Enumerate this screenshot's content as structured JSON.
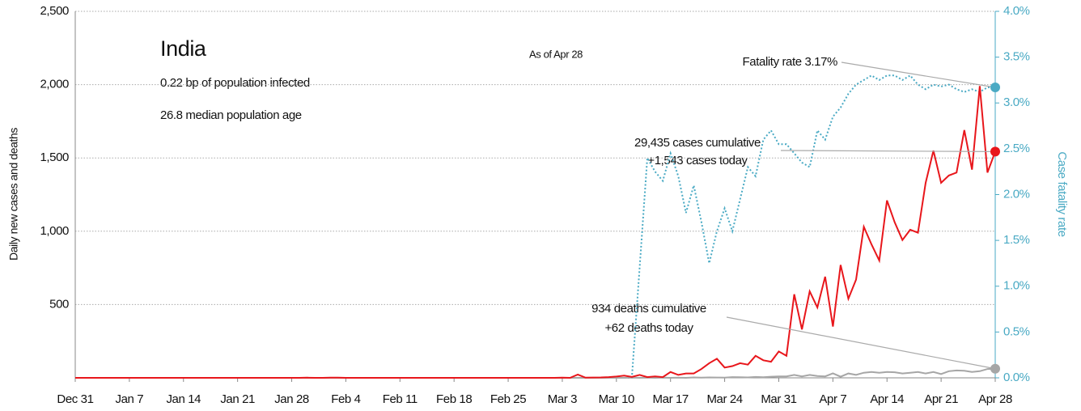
{
  "chart_data": {
    "type": "line",
    "title": "India",
    "subtitle": "As of Apr 28",
    "annotations": {
      "population_infected": "0.22 bp of population infected",
      "median_age": "26.8 median population age",
      "fatality": "Fatality rate 3.17%",
      "cases_cumulative": "29,435 cases cumulative",
      "cases_today": "+1,543 cases today",
      "deaths_cumulative": "934 deaths cumulative",
      "deaths_today": "+62 deaths today"
    },
    "ylabel": "Daily new cases and deaths",
    "y2label": "Case fatality rate",
    "categories": [
      "Dec 31",
      null,
      null,
      null,
      null,
      null,
      null,
      "Jan 7",
      null,
      null,
      null,
      null,
      null,
      null,
      "Jan 14",
      null,
      null,
      null,
      null,
      null,
      null,
      "Jan 21",
      null,
      null,
      null,
      null,
      null,
      null,
      "Jan 28",
      null,
      null,
      null,
      null,
      null,
      null,
      "Feb 4",
      null,
      null,
      null,
      null,
      null,
      null,
      "Feb 11",
      null,
      null,
      null,
      null,
      null,
      null,
      "Feb 18",
      null,
      null,
      null,
      null,
      null,
      null,
      "Feb 25",
      null,
      null,
      null,
      null,
      null,
      null,
      "Mar 3",
      null,
      null,
      null,
      null,
      null,
      null,
      "Mar 10",
      null,
      null,
      null,
      null,
      null,
      null,
      "Mar 17",
      null,
      null,
      null,
      null,
      null,
      null,
      "Mar 24",
      null,
      null,
      null,
      null,
      null,
      null,
      "Mar 31",
      null,
      null,
      null,
      null,
      null,
      null,
      "Apr 7",
      null,
      null,
      null,
      null,
      null,
      null,
      "Apr 14",
      null,
      null,
      null,
      null,
      null,
      null,
      "Apr 21",
      null,
      null,
      null,
      null,
      null,
      null,
      "Apr 28"
    ],
    "series": [
      {
        "color": "#e8161b",
        "style": "solid",
        "axis": "y",
        "values": [
          0,
          0,
          0,
          0,
          0,
          0,
          0,
          0,
          0,
          0,
          0,
          0,
          0,
          0,
          0,
          0,
          0,
          0,
          0,
          0,
          0,
          0,
          0,
          0,
          0,
          0,
          0,
          0,
          0,
          0,
          1,
          0,
          0,
          1,
          1,
          0,
          0,
          0,
          0,
          0,
          0,
          0,
          0,
          0,
          0,
          0,
          0,
          0,
          0,
          0,
          0,
          0,
          0,
          0,
          0,
          0,
          0,
          0,
          0,
          0,
          0,
          0,
          0,
          1,
          0,
          22,
          1,
          2,
          3,
          5,
          9,
          15,
          6,
          20,
          5,
          10,
          5,
          40,
          20,
          30,
          30,
          60,
          100,
          130,
          70,
          80,
          100,
          90,
          150,
          120,
          110,
          180,
          150,
          570,
          330,
          590,
          480,
          690,
          350,
          770,
          540,
          670,
          1030,
          910,
          800,
          1210,
          1060,
          940,
          1010,
          990,
          1330,
          1550,
          1330,
          1380,
          1400,
          1690,
          1420,
          1990,
          1400,
          1543
        ]
      },
      {
        "color": "#a6a6a6",
        "style": "solid",
        "axis": "y",
        "values": [
          0,
          0,
          0,
          0,
          0,
          0,
          0,
          0,
          0,
          0,
          0,
          0,
          0,
          0,
          0,
          0,
          0,
          0,
          0,
          0,
          0,
          0,
          0,
          0,
          0,
          0,
          0,
          0,
          0,
          0,
          0,
          0,
          0,
          0,
          0,
          0,
          0,
          0,
          0,
          0,
          0,
          0,
          0,
          0,
          0,
          0,
          0,
          0,
          0,
          0,
          0,
          0,
          0,
          0,
          0,
          0,
          0,
          0,
          0,
          0,
          0,
          0,
          0,
          0,
          0,
          0,
          0,
          0,
          0,
          0,
          0,
          0,
          1,
          0,
          1,
          0,
          1,
          0,
          1,
          0,
          3,
          1,
          3,
          2,
          1,
          5,
          4,
          3,
          6,
          4,
          8,
          10,
          10,
          20,
          10,
          20,
          12,
          10,
          31,
          8,
          30,
          20,
          35,
          40,
          35,
          40,
          38,
          30,
          35,
          40,
          30,
          40,
          26,
          45,
          50,
          48,
          40,
          45,
          60,
          62
        ]
      },
      {
        "color": "#4aaac4",
        "style": "dotted",
        "axis": "y2",
        "values": [
          null,
          null,
          null,
          null,
          null,
          null,
          null,
          null,
          null,
          null,
          null,
          null,
          null,
          null,
          null,
          null,
          null,
          null,
          null,
          null,
          null,
          null,
          null,
          null,
          null,
          null,
          null,
          null,
          null,
          null,
          null,
          null,
          null,
          null,
          null,
          null,
          null,
          null,
          null,
          null,
          null,
          null,
          null,
          null,
          null,
          null,
          null,
          null,
          null,
          null,
          null,
          null,
          null,
          null,
          null,
          null,
          null,
          null,
          null,
          null,
          null,
          null,
          null,
          null,
          null,
          null,
          null,
          null,
          null,
          null,
          null,
          0,
          0,
          1.2,
          2.4,
          2.25,
          2.15,
          2.45,
          2.2,
          1.8,
          2.1,
          1.7,
          1.25,
          1.6,
          1.85,
          1.6,
          1.95,
          2.3,
          2.2,
          2.6,
          2.7,
          2.55,
          2.55,
          2.45,
          2.35,
          2.3,
          2.7,
          2.6,
          2.85,
          2.95,
          3.1,
          3.2,
          3.25,
          3.3,
          3.25,
          3.3,
          3.3,
          3.25,
          3.3,
          3.2,
          3.15,
          3.2,
          3.18,
          3.2,
          3.15,
          3.12,
          3.15,
          3.12,
          3.17,
          3.17
        ]
      }
    ],
    "ylim": [
      0,
      2500
    ],
    "yticks": [
      500,
      {
        "value": 1000,
        "label": "1,000"
      },
      {
        "value": 1500,
        "label": "1,500"
      },
      {
        "value": 2000,
        "label": "2,000"
      },
      {
        "value": 2500,
        "label": "2,500"
      }
    ],
    "y2lim": [
      0,
      4
    ],
    "y2ticks": [
      {
        "value": 0,
        "label": "0.0%"
      },
      {
        "value": 0.5,
        "label": "0.5%"
      },
      {
        "value": 1,
        "label": "1.0%"
      },
      {
        "value": 1.5,
        "label": "1.5%"
      },
      {
        "value": 2,
        "label": "2.0%"
      },
      {
        "value": 2.5,
        "label": "2.5%"
      },
      {
        "value": 3,
        "label": "3.0%"
      },
      {
        "value": 3.5,
        "label": "3.5%"
      },
      {
        "value": 4,
        "label": "4.0%"
      }
    ],
    "grid": true
  }
}
